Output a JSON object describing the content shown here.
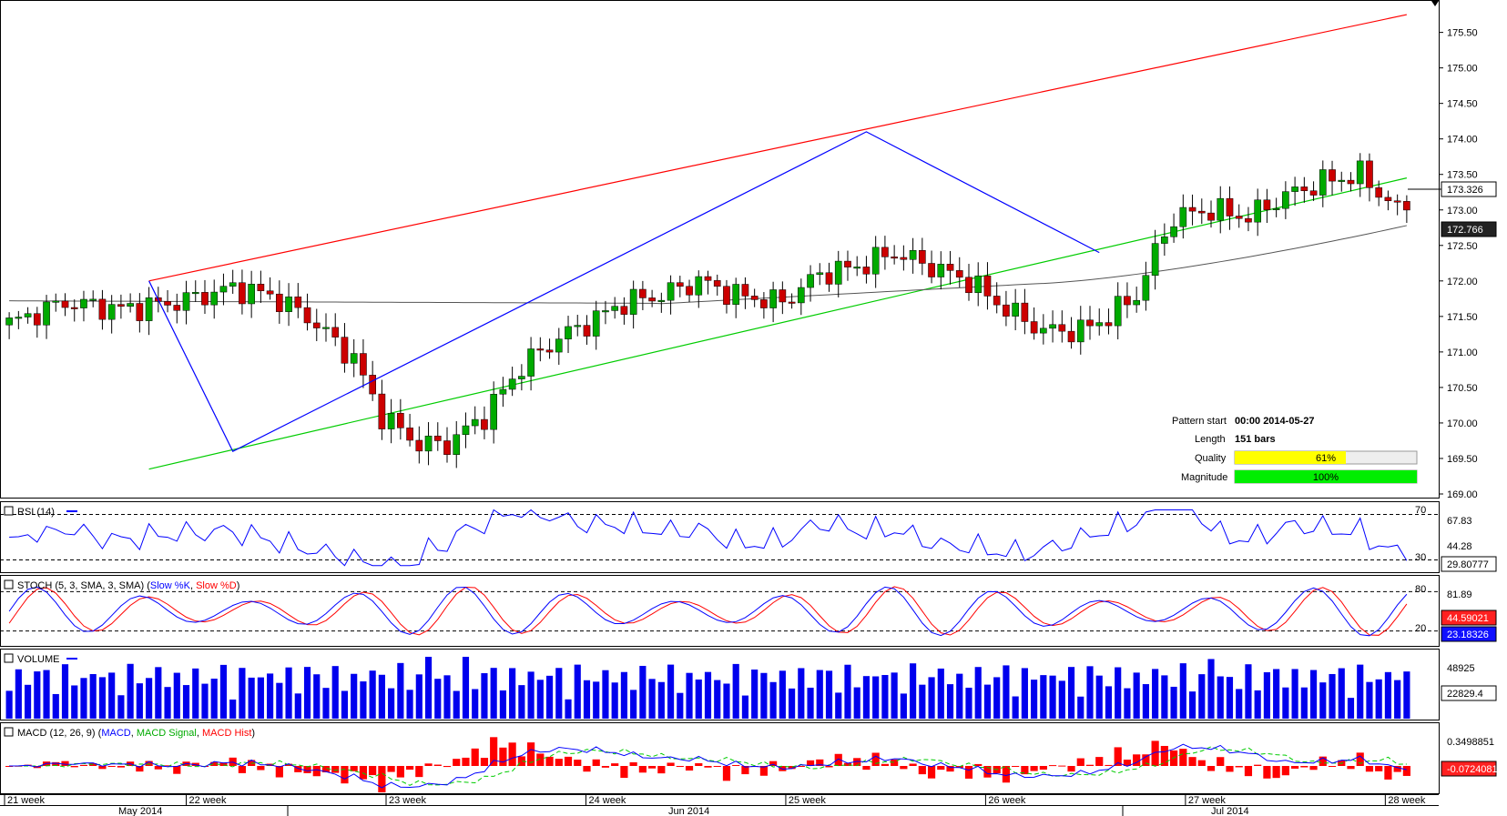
{
  "chart_data": {
    "type": "candlestick",
    "main": {
      "y_ticks": [
        "175.50",
        "175.00",
        "174.50",
        "174.00",
        "173.50",
        "173.00",
        "172.50",
        "172.00",
        "171.50",
        "171.00",
        "170.50",
        "170.00",
        "169.50",
        "169.00"
      ],
      "ylim": [
        169.0,
        175.8
      ],
      "last_price": "173.326",
      "ma_value": "172.766",
      "bars_count": 151,
      "ohlc_anchors": [
        [
          0,
          171.4
        ],
        [
          6,
          171.7
        ],
        [
          12,
          171.6
        ],
        [
          18,
          171.7
        ],
        [
          24,
          171.9
        ],
        [
          28,
          171.8
        ],
        [
          32,
          171.5
        ],
        [
          37,
          170.9
        ],
        [
          40,
          170.1
        ],
        [
          44,
          169.7
        ],
        [
          47,
          169.7
        ],
        [
          51,
          170.1
        ],
        [
          55,
          170.8
        ],
        [
          59,
          171.2
        ],
        [
          62,
          171.4
        ],
        [
          66,
          171.7
        ],
        [
          70,
          171.8
        ],
        [
          74,
          172.0
        ],
        [
          78,
          171.8
        ],
        [
          83,
          171.7
        ],
        [
          87,
          172.1
        ],
        [
          91,
          172.2
        ],
        [
          95,
          172.4
        ],
        [
          99,
          172.2
        ],
        [
          103,
          172.0
        ],
        [
          107,
          171.6
        ],
        [
          111,
          171.3
        ],
        [
          115,
          171.3
        ],
        [
          118,
          171.5
        ],
        [
          121,
          171.8
        ],
        [
          123,
          172.4
        ],
        [
          125,
          172.9
        ],
        [
          129,
          173.0
        ],
        [
          133,
          172.9
        ],
        [
          137,
          173.2
        ],
        [
          141,
          173.4
        ],
        [
          145,
          173.5
        ],
        [
          149,
          173.0
        ],
        [
          151,
          173.1
        ]
      ],
      "pattern_start": "00:00 2014-05-27",
      "pattern_length": "151 bars",
      "quality_pct": 61,
      "magnitude_pct": 100
    },
    "rsi": {
      "value": "29.80777",
      "levels": [
        "70",
        "67.83",
        "44.28",
        "30"
      ]
    },
    "stoch": {
      "slow_k": "23.18326",
      "slow_d": "44.59021",
      "levels": [
        "81.89",
        "80",
        "20"
      ]
    },
    "volume": {
      "value": "22829.4",
      "tick": "48925"
    },
    "macd": {
      "value": "-0.0724081",
      "tick": "0.3498851"
    },
    "x_weeks": [
      "21 week",
      "22 week",
      "23 week",
      "24 week",
      "25 week",
      "26 week",
      "27 week",
      "28 week"
    ],
    "x_months": [
      "May 2014",
      "Jun 2014",
      "Jul 2014"
    ]
  },
  "labels": {
    "rsi_title": "RSI (14)",
    "stoch_title": "STOCH (5, 3, SMA, 3, SMA)",
    "stoch_k": "Slow %K",
    "stoch_d": "Slow %D",
    "volume_title": "VOLUME",
    "macd_title": "MACD (12, 26, 9)",
    "macd_line": "MACD",
    "macd_signal": "MACD Signal",
    "macd_hist": "MACD Hist",
    "pattern_start_label": "Pattern start",
    "length_label": "Length",
    "quality_label": "Quality",
    "magnitude_label": "Magnitude",
    "quality_text": "61%",
    "magnitude_text": "100%"
  },
  "colors": {
    "bull": "#00aa00",
    "bear": "#cc0000",
    "resistance": "#ff0000",
    "support": "#00cc00",
    "zigzag": "#0000ff",
    "ma": "#555555",
    "quality_bar": "#ffff00",
    "magnitude_bar": "#00ee00",
    "volume": "#0000ee"
  }
}
